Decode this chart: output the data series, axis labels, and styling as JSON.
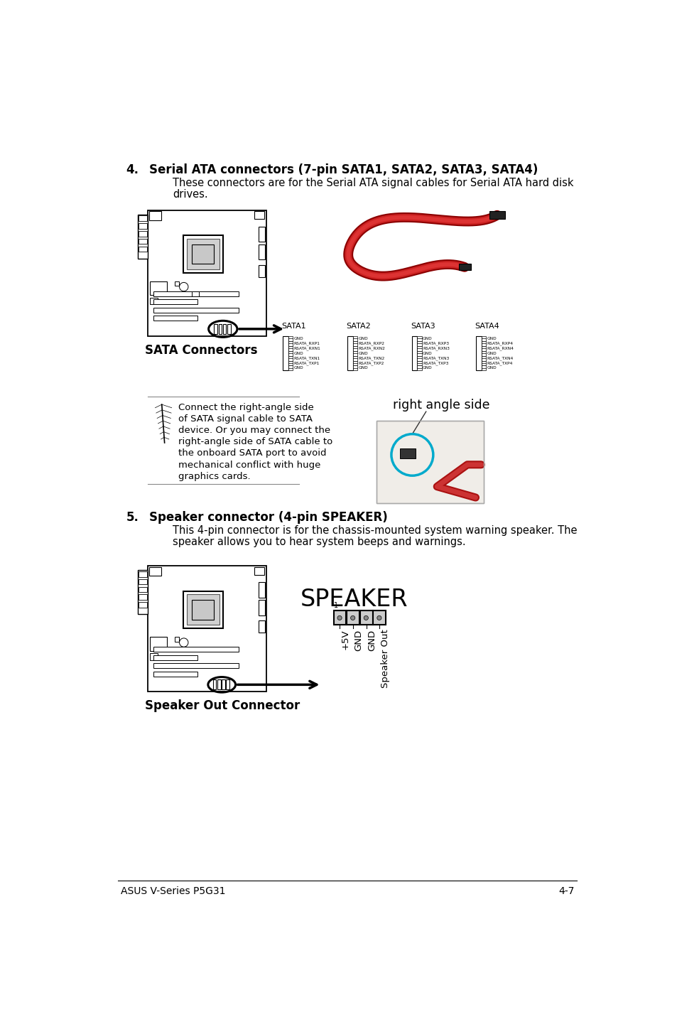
{
  "bg_color": "#ffffff",
  "footer_text_left": "ASUS V-Series P5G31",
  "footer_text_right": "4-7",
  "section4_number": "4.",
  "section4_title": "Serial ATA connectors (7-pin SATA1, SATA2, SATA3, SATA4)",
  "section4_body1": "These connectors are for the Serial ATA signal cables for Serial ATA hard disk",
  "section4_body2": "drives.",
  "section5_number": "5.",
  "section5_title": "Speaker connector (4-pin SPEAKER)",
  "section5_body1": "This 4-pin connector is for the chassis-mounted system warning speaker. The",
  "section5_body2": "speaker allows you to hear system beeps and warnings.",
  "sata_label": "SATA Connectors",
  "speaker_label": "Speaker Out Connector",
  "right_angle_label": "right angle side",
  "note_text_lines": [
    "Connect the right-angle side",
    "of SATA signal cable to SATA",
    "device. Or you may connect the",
    "right-angle side of SATA cable to",
    "the onboard SATA port to avoid",
    "mechanical conflict with huge",
    "graphics cards."
  ],
  "sata_pins": [
    "SATA1",
    "SATA2",
    "SATA3",
    "SATA4"
  ],
  "sata1_labels": [
    "GND",
    "RSATA_RXP1",
    "RSATA_RXN1",
    "GND",
    "RSATA_TXN1",
    "RSATA_TXP1",
    "GND"
  ],
  "sata2_labels": [
    "GND",
    "RSATA_RXP2",
    "RSATA_RXN2",
    "GND",
    "RSATA_TXN2",
    "RSATA_TXP2",
    "GND"
  ],
  "sata3_labels": [
    "GND",
    "RSATA_RXP3",
    "RSATA_RXN3",
    "GND",
    "RSATA_TXN3",
    "RSATA_TXP3",
    "GND"
  ],
  "sata4_labels": [
    "GND",
    "RSATA_RXP4",
    "RSATA_RXN4",
    "GND",
    "RSATA_TXN4",
    "RSATA_TXP4",
    "GND"
  ],
  "speaker_pins": [
    "+5V",
    "GND",
    "GND",
    "Speaker Out"
  ],
  "cyan_circle_color": "#00aacc",
  "arrow_color": "#000000",
  "cable_color": "#aa1111",
  "cable_color2": "#cc3333"
}
